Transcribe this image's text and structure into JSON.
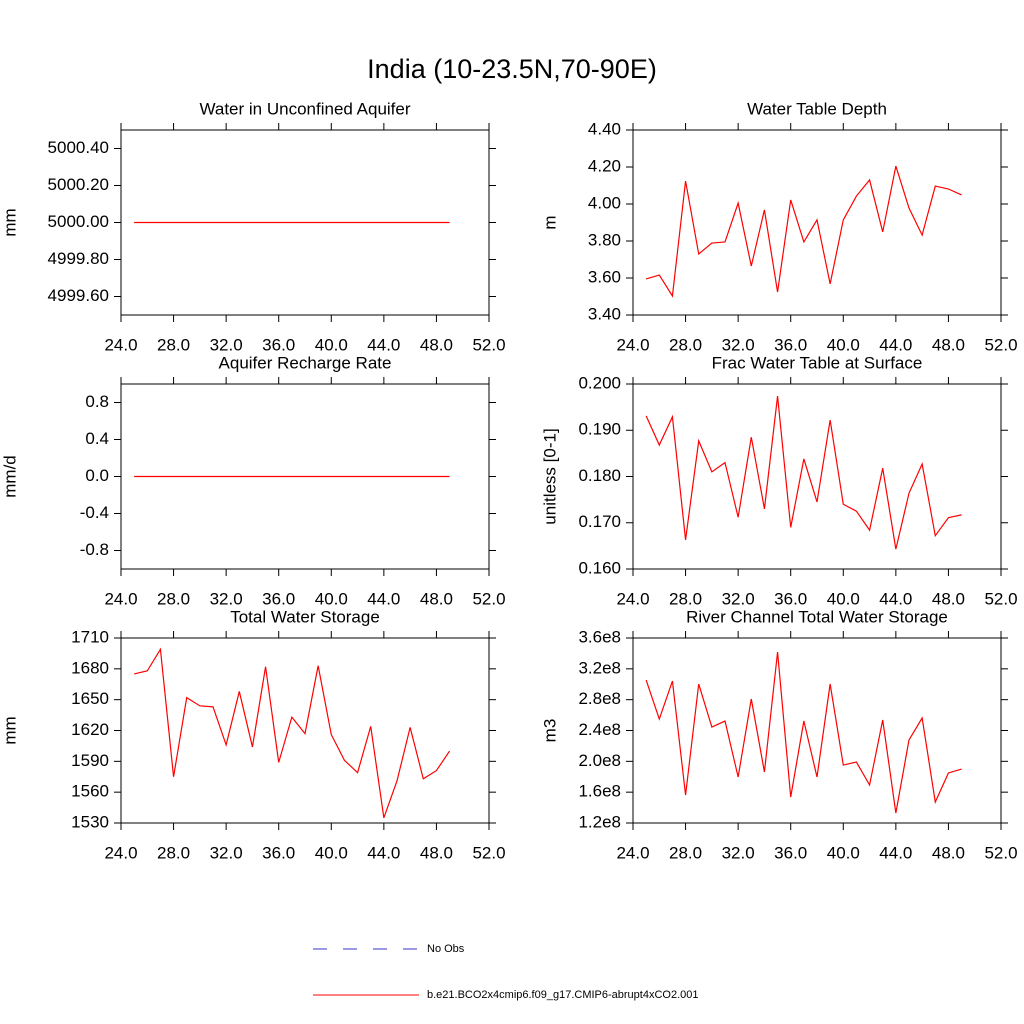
{
  "title": "India (10-23.5N,70-90E)",
  "legend": [
    {
      "name": "No Obs",
      "color": "#3333cc",
      "dashed": true
    },
    {
      "name": "b.e21.BCO2x4cmip6.f09_g17.CMIP6-abrupt4xCO2.001",
      "color": "#ff0000",
      "dashed": false
    }
  ],
  "chart_data": [
    {
      "type": "line",
      "title": "Water in Unconfined Aquifer",
      "y_label": "mm",
      "color": "#ff0000",
      "x": [
        25,
        26,
        27,
        28,
        29,
        30,
        31,
        32,
        33,
        34,
        35,
        36,
        37,
        38,
        39,
        40,
        41,
        42,
        43,
        44,
        45,
        46,
        47,
        48,
        49
      ],
      "values": [
        5000,
        5000,
        5000,
        5000,
        5000,
        5000,
        5000,
        5000,
        5000,
        5000,
        5000,
        5000,
        5000,
        5000,
        5000,
        5000,
        5000,
        5000,
        5000,
        5000,
        5000,
        5000,
        5000,
        5000,
        5000
      ],
      "xlim": [
        24,
        52
      ],
      "xticks": [
        {
          "value": 24,
          "label": "24.0"
        },
        {
          "value": 28,
          "label": "28.0"
        },
        {
          "value": 32,
          "label": "32.0"
        },
        {
          "value": 36,
          "label": "36.0"
        },
        {
          "value": 40,
          "label": "40.0"
        },
        {
          "value": 44,
          "label": "44.0"
        },
        {
          "value": 48,
          "label": "48.0"
        },
        {
          "value": 52,
          "label": "52.0"
        }
      ],
      "ylim": [
        4999.5,
        5000.5
      ],
      "yticks": [
        {
          "value": 4999.6,
          "label": "4999.60"
        },
        {
          "value": 4999.8,
          "label": "4999.80"
        },
        {
          "value": 5000,
          "label": "5000.00"
        },
        {
          "value": 5000.2,
          "label": "5000.20"
        },
        {
          "value": 5000.4,
          "label": "5000.40"
        }
      ]
    },
    {
      "type": "line",
      "title": "Water Table Depth",
      "y_label": "m",
      "color": "#ff0000",
      "x": [
        25,
        26,
        27,
        28,
        29,
        30,
        31,
        32,
        33,
        34,
        35,
        36,
        37,
        38,
        39,
        40,
        41,
        42,
        43,
        44,
        45,
        46,
        47,
        48,
        49
      ],
      "values": [
        3.595,
        3.616,
        3.503,
        4.124,
        3.73,
        3.789,
        3.795,
        4.005,
        3.665,
        3.968,
        3.524,
        4.022,
        3.795,
        3.914,
        3.568,
        3.914,
        4.043,
        4.13,
        3.849,
        4.205,
        3.978,
        3.832,
        4.097,
        4.081,
        4.049
      ],
      "xlim": [
        24,
        52
      ],
      "xticks": [
        {
          "value": 24,
          "label": "24.0"
        },
        {
          "value": 28,
          "label": "28.0"
        },
        {
          "value": 32,
          "label": "32.0"
        },
        {
          "value": 36,
          "label": "36.0"
        },
        {
          "value": 40,
          "label": "40.0"
        },
        {
          "value": 44,
          "label": "44.0"
        },
        {
          "value": 48,
          "label": "48.0"
        },
        {
          "value": 52,
          "label": "52.0"
        }
      ],
      "ylim": [
        3.4,
        4.4
      ],
      "yticks": [
        {
          "value": 3.4,
          "label": "3.40"
        },
        {
          "value": 3.6,
          "label": "3.60"
        },
        {
          "value": 3.8,
          "label": "3.80"
        },
        {
          "value": 4,
          "label": "4.00"
        },
        {
          "value": 4.2,
          "label": "4.20"
        },
        {
          "value": 4.4,
          "label": "4.40"
        }
      ]
    },
    {
      "type": "line",
      "title": "Aquifer Recharge Rate",
      "y_label": "mm/d",
      "color": "#ff0000",
      "x": [
        25,
        26,
        27,
        28,
        29,
        30,
        31,
        32,
        33,
        34,
        35,
        36,
        37,
        38,
        39,
        40,
        41,
        42,
        43,
        44,
        45,
        46,
        47,
        48,
        49
      ],
      "values": [
        0,
        0,
        0,
        0,
        0,
        0,
        0,
        0,
        0,
        0,
        0,
        0,
        0,
        0,
        0,
        0,
        0,
        0,
        0,
        0,
        0,
        0,
        0,
        0,
        0
      ],
      "xlim": [
        24,
        52
      ],
      "xticks": [
        {
          "value": 24,
          "label": "24.0"
        },
        {
          "value": 28,
          "label": "28.0"
        },
        {
          "value": 32,
          "label": "32.0"
        },
        {
          "value": 36,
          "label": "36.0"
        },
        {
          "value": 40,
          "label": "40.0"
        },
        {
          "value": 44,
          "label": "44.0"
        },
        {
          "value": 48,
          "label": "48.0"
        },
        {
          "value": 52,
          "label": "52.0"
        }
      ],
      "ylim": [
        -1,
        1
      ],
      "yticks": [
        -0.8,
        -0.4,
        {
          "value": 0,
          "label": "0.0"
        },
        0.4,
        0.8
      ]
    },
    {
      "type": "line",
      "title": "Frac Water Table at Surface",
      "y_label": "unitless [0-1]",
      "color": "#ff0000",
      "x": [
        25,
        26,
        27,
        28,
        29,
        30,
        31,
        32,
        33,
        34,
        35,
        36,
        37,
        38,
        39,
        40,
        41,
        42,
        43,
        44,
        45,
        46,
        47,
        48,
        49
      ],
      "values": [
        0.1931,
        0.1868,
        0.1929,
        0.1663,
        0.1877,
        0.181,
        0.183,
        0.1712,
        0.1885,
        0.173,
        0.1974,
        0.169,
        0.1838,
        0.1745,
        0.1922,
        0.174,
        0.1725,
        0.1684,
        0.1818,
        0.1643,
        0.1764,
        0.1827,
        0.1672,
        0.1711,
        0.1717
      ],
      "xlim": [
        24,
        52
      ],
      "xticks": [
        {
          "value": 24,
          "label": "24.0"
        },
        {
          "value": 28,
          "label": "28.0"
        },
        {
          "value": 32,
          "label": "32.0"
        },
        {
          "value": 36,
          "label": "36.0"
        },
        {
          "value": 40,
          "label": "40.0"
        },
        {
          "value": 44,
          "label": "44.0"
        },
        {
          "value": 48,
          "label": "48.0"
        },
        {
          "value": 52,
          "label": "52.0"
        }
      ],
      "ylim": [
        0.16,
        0.2
      ],
      "yticks": [
        {
          "value": 0.16,
          "label": "0.160"
        },
        {
          "value": 0.17,
          "label": "0.170"
        },
        {
          "value": 0.18,
          "label": "0.180"
        },
        {
          "value": 0.19,
          "label": "0.190"
        },
        {
          "value": 0.2,
          "label": "0.200"
        }
      ]
    },
    {
      "type": "line",
      "title": "Total Water Storage",
      "y_label": "mm",
      "color": "#ff0000",
      "x": [
        25,
        26,
        27,
        28,
        29,
        30,
        31,
        32,
        33,
        34,
        35,
        36,
        37,
        38,
        39,
        40,
        41,
        42,
        43,
        44,
        45,
        46,
        47,
        48,
        49
      ],
      "values": [
        1675,
        1678,
        1699,
        1575,
        1652,
        1644,
        1643,
        1606,
        1658,
        1604,
        1682,
        1589,
        1633,
        1617,
        1683,
        1616,
        1591,
        1579,
        1624,
        1535,
        1571,
        1623,
        1573,
        1581,
        1600
      ],
      "xlim": [
        24,
        52
      ],
      "xticks": [
        {
          "value": 24,
          "label": "24.0"
        },
        {
          "value": 28,
          "label": "28.0"
        },
        {
          "value": 32,
          "label": "32.0"
        },
        {
          "value": 36,
          "label": "36.0"
        },
        {
          "value": 40,
          "label": "40.0"
        },
        {
          "value": 44,
          "label": "44.0"
        },
        {
          "value": 48,
          "label": "48.0"
        },
        {
          "value": 52,
          "label": "52.0"
        }
      ],
      "ylim": [
        1530,
        1710
      ],
      "yticks": [
        1530,
        1560,
        1590,
        1620,
        1650,
        1680,
        1710
      ]
    },
    {
      "type": "line",
      "title": "River Channel Total Water Storage",
      "y_label": "m3",
      "color": "#ff0000",
      "x": [
        25,
        26,
        27,
        28,
        29,
        30,
        31,
        32,
        33,
        34,
        35,
        36,
        37,
        38,
        39,
        40,
        41,
        42,
        43,
        44,
        45,
        46,
        47,
        48,
        49
      ],
      "values": [
        305500000,
        254900000,
        304200000,
        156300000,
        300300000,
        244500000,
        252300000,
        179700000,
        280900000,
        186200000,
        341800000,
        153700000,
        252300000,
        179700000,
        300300000,
        195200000,
        199100000,
        169300000,
        253600000,
        133000000,
        227700000,
        256200000,
        147200000,
        184900000,
        190000000
      ],
      "xlim": [
        24,
        52
      ],
      "xticks": [
        {
          "value": 24,
          "label": "24.0"
        },
        {
          "value": 28,
          "label": "28.0"
        },
        {
          "value": 32,
          "label": "32.0"
        },
        {
          "value": 36,
          "label": "36.0"
        },
        {
          "value": 40,
          "label": "40.0"
        },
        {
          "value": 44,
          "label": "44.0"
        },
        {
          "value": 48,
          "label": "48.0"
        },
        {
          "value": 52,
          "label": "52.0"
        }
      ],
      "ylim": [
        120000000,
        360000000
      ],
      "yticks": [
        {
          "value": 120000000,
          "label": "1.2e8"
        },
        {
          "value": 160000000,
          "label": "1.6e8"
        },
        {
          "value": 200000000,
          "label": "2.0e8"
        },
        {
          "value": 240000000,
          "label": "2.4e8"
        },
        {
          "value": 280000000,
          "label": "2.8e8"
        },
        {
          "value": 320000000,
          "label": "3.2e8"
        },
        {
          "value": 360000000,
          "label": "3.6e8"
        }
      ]
    }
  ]
}
